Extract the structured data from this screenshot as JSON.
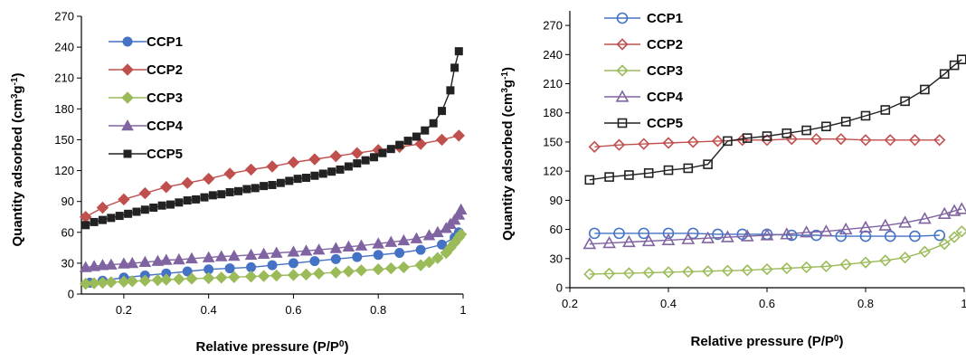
{
  "chart_data": [
    {
      "type": "line",
      "title": "",
      "xlabel_main": "Relative pressure (P/P",
      "xlabel_sup": "0",
      "xlabel_close": ")",
      "ylabel_main": "Quantity adsorbed (cm",
      "ylabel_sup1": "3",
      "ylabel_mid": "g",
      "ylabel_sup2": "-1",
      "ylabel_close": ")",
      "xlim": [
        0.1,
        1.0
      ],
      "ylim": [
        0,
        270
      ],
      "xticks": [
        0.2,
        0.4,
        0.6,
        0.8,
        1.0
      ],
      "xtick_labels": [
        "0.2",
        "0.4",
        "0.6",
        "0.8",
        "1"
      ],
      "yticks": [
        0,
        30,
        60,
        90,
        120,
        150,
        180,
        210,
        240,
        270
      ],
      "ytick_labels": [
        "0",
        "30",
        "60",
        "90",
        "120",
        "150",
        "180",
        "210",
        "240",
        "270"
      ],
      "grid": false,
      "legend_position": "top-left",
      "series": [
        {
          "name": "CCP1",
          "color": "#4472c4",
          "marker": "circle-filled",
          "x": [
            0.12,
            0.15,
            0.2,
            0.25,
            0.3,
            0.35,
            0.4,
            0.45,
            0.5,
            0.55,
            0.6,
            0.65,
            0.7,
            0.75,
            0.8,
            0.85,
            0.9,
            0.95,
            0.98,
            0.99
          ],
          "y": [
            11,
            13,
            16,
            18,
            20,
            22,
            24,
            25,
            26,
            28,
            30,
            32,
            34,
            36,
            38,
            40,
            43,
            48,
            55,
            60
          ]
        },
        {
          "name": "CCP2",
          "color": "#c0504d",
          "marker": "diamond-filled",
          "x": [
            0.11,
            0.15,
            0.2,
            0.25,
            0.3,
            0.35,
            0.4,
            0.45,
            0.5,
            0.55,
            0.6,
            0.65,
            0.7,
            0.75,
            0.8,
            0.85,
            0.9,
            0.95,
            0.99
          ],
          "y": [
            75,
            84,
            92,
            98,
            104,
            108,
            112,
            117,
            121,
            124,
            128,
            131,
            134,
            137,
            140,
            143,
            146,
            150,
            154
          ]
        },
        {
          "name": "CCP3",
          "color": "#9bbb59",
          "marker": "diamond-filled",
          "x": [
            0.11,
            0.13,
            0.15,
            0.17,
            0.2,
            0.22,
            0.25,
            0.28,
            0.3,
            0.33,
            0.36,
            0.4,
            0.43,
            0.46,
            0.5,
            0.53,
            0.56,
            0.6,
            0.63,
            0.66,
            0.7,
            0.73,
            0.76,
            0.8,
            0.83,
            0.86,
            0.9,
            0.92,
            0.94,
            0.96,
            0.97,
            0.98,
            0.99,
            0.995
          ],
          "y": [
            10,
            10.5,
            11,
            11.5,
            12,
            12.5,
            13,
            13.5,
            14,
            14.5,
            15,
            15.5,
            16,
            16.5,
            17,
            17.5,
            18,
            18.5,
            19,
            20,
            21,
            22,
            23,
            24,
            25,
            26,
            28,
            31,
            35,
            40,
            45,
            50,
            55,
            58
          ]
        },
        {
          "name": "CCP4",
          "color": "#8064a2",
          "marker": "triangle-filled",
          "x": [
            0.11,
            0.13,
            0.15,
            0.17,
            0.2,
            0.22,
            0.25,
            0.28,
            0.3,
            0.33,
            0.36,
            0.4,
            0.43,
            0.46,
            0.5,
            0.53,
            0.56,
            0.6,
            0.63,
            0.66,
            0.7,
            0.73,
            0.76,
            0.8,
            0.83,
            0.86,
            0.89,
            0.92,
            0.94,
            0.96,
            0.97,
            0.98,
            0.99,
            0.995
          ],
          "y": [
            26,
            27,
            28,
            28.5,
            29.5,
            30,
            31,
            32,
            33,
            33.5,
            34.5,
            35.5,
            36.5,
            37,
            38,
            39,
            40,
            41,
            42,
            43,
            44.5,
            46,
            47,
            49,
            50.5,
            52,
            54,
            57,
            60,
            64,
            68,
            72,
            77,
            82
          ]
        },
        {
          "name": "CCP5",
          "color": "#222222",
          "marker": "square-filled",
          "x": [
            0.11,
            0.13,
            0.15,
            0.17,
            0.19,
            0.21,
            0.23,
            0.25,
            0.27,
            0.29,
            0.31,
            0.33,
            0.35,
            0.37,
            0.39,
            0.41,
            0.43,
            0.45,
            0.47,
            0.49,
            0.51,
            0.53,
            0.55,
            0.57,
            0.59,
            0.61,
            0.63,
            0.65,
            0.67,
            0.69,
            0.71,
            0.73,
            0.75,
            0.77,
            0.79,
            0.81,
            0.83,
            0.85,
            0.87,
            0.89,
            0.91,
            0.93,
            0.95,
            0.97,
            0.98,
            0.99
          ],
          "y": [
            67,
            70,
            72,
            74,
            76,
            78,
            80,
            82,
            84,
            86,
            87,
            89,
            91,
            92,
            94,
            96,
            97,
            99,
            100,
            102,
            103,
            105,
            106,
            108,
            110,
            112,
            113,
            115,
            117,
            119,
            121,
            124,
            127,
            130,
            133,
            137,
            141,
            145,
            149,
            153,
            159,
            166,
            178,
            198,
            220,
            236
          ]
        }
      ]
    },
    {
      "type": "line",
      "title": "",
      "xlabel_main": "Relative pressure (P/P",
      "xlabel_sup": "0",
      "xlabel_close": ")",
      "ylabel_main": "Quantity adsorbed (cm",
      "ylabel_sup1": "3",
      "ylabel_mid": "g",
      "ylabel_sup2": "-1",
      "ylabel_close": ")",
      "xlim": [
        0.2,
        1.0
      ],
      "ylim": [
        0,
        285
      ],
      "xticks": [
        0.2,
        0.4,
        0.6,
        0.8,
        1.0
      ],
      "xtick_labels": [
        "0.2",
        "0.4",
        "0.6",
        "0.8",
        "1"
      ],
      "yticks": [
        0,
        30,
        60,
        90,
        120,
        150,
        180,
        210,
        240,
        270
      ],
      "ytick_labels": [
        "0",
        "30",
        "60",
        "90",
        "120",
        "150",
        "180",
        "210",
        "240",
        "270"
      ],
      "grid": false,
      "legend_position": "top-left",
      "series": [
        {
          "name": "CCP1",
          "color": "#4472c4",
          "marker": "circle-open",
          "x": [
            0.25,
            0.3,
            0.35,
            0.4,
            0.45,
            0.5,
            0.55,
            0.6,
            0.65,
            0.7,
            0.75,
            0.8,
            0.85,
            0.9,
            0.95
          ],
          "y": [
            56,
            56,
            56,
            56,
            56,
            55,
            55,
            55,
            54,
            54,
            53,
            53,
            53,
            53,
            54
          ]
        },
        {
          "name": "CCP2",
          "color": "#c0504d",
          "marker": "diamond-open",
          "x": [
            0.25,
            0.3,
            0.35,
            0.4,
            0.45,
            0.5,
            0.55,
            0.6,
            0.65,
            0.7,
            0.75,
            0.8,
            0.85,
            0.9,
            0.95
          ],
          "y": [
            145,
            147,
            148,
            149,
            150,
            151,
            152,
            152,
            153,
            153,
            153,
            152,
            152,
            152,
            152
          ]
        },
        {
          "name": "CCP3",
          "color": "#9bbb59",
          "marker": "diamond-open",
          "x": [
            0.24,
            0.28,
            0.32,
            0.36,
            0.4,
            0.44,
            0.48,
            0.52,
            0.56,
            0.6,
            0.64,
            0.68,
            0.72,
            0.76,
            0.8,
            0.84,
            0.88,
            0.92,
            0.96,
            0.98,
            0.995
          ],
          "y": [
            14,
            14.5,
            15,
            15.5,
            16,
            16.5,
            17,
            17.5,
            18,
            19,
            20,
            21,
            22,
            24,
            26,
            28,
            31,
            37,
            45,
            52,
            58
          ]
        },
        {
          "name": "CCP4",
          "color": "#8064a2",
          "marker": "triangle-open",
          "x": [
            0.24,
            0.28,
            0.32,
            0.36,
            0.4,
            0.44,
            0.48,
            0.52,
            0.56,
            0.6,
            0.64,
            0.68,
            0.72,
            0.76,
            0.8,
            0.84,
            0.88,
            0.92,
            0.96,
            0.98,
            0.995
          ],
          "y": [
            45,
            46,
            47,
            48,
            49,
            50,
            51,
            52,
            53,
            54,
            55,
            57,
            58,
            60,
            62,
            64,
            67,
            71,
            76,
            79,
            81
          ]
        },
        {
          "name": "CCP5",
          "color": "#222222",
          "marker": "square-open",
          "x": [
            0.24,
            0.28,
            0.32,
            0.36,
            0.4,
            0.44,
            0.48,
            0.52,
            0.56,
            0.6,
            0.64,
            0.68,
            0.72,
            0.76,
            0.8,
            0.84,
            0.88,
            0.92,
            0.96,
            0.98,
            0.995
          ],
          "y": [
            111,
            114,
            116,
            118,
            121,
            123,
            127,
            151,
            154,
            156,
            159,
            162,
            166,
            171,
            177,
            183,
            192,
            204,
            220,
            229,
            235
          ]
        }
      ]
    }
  ]
}
